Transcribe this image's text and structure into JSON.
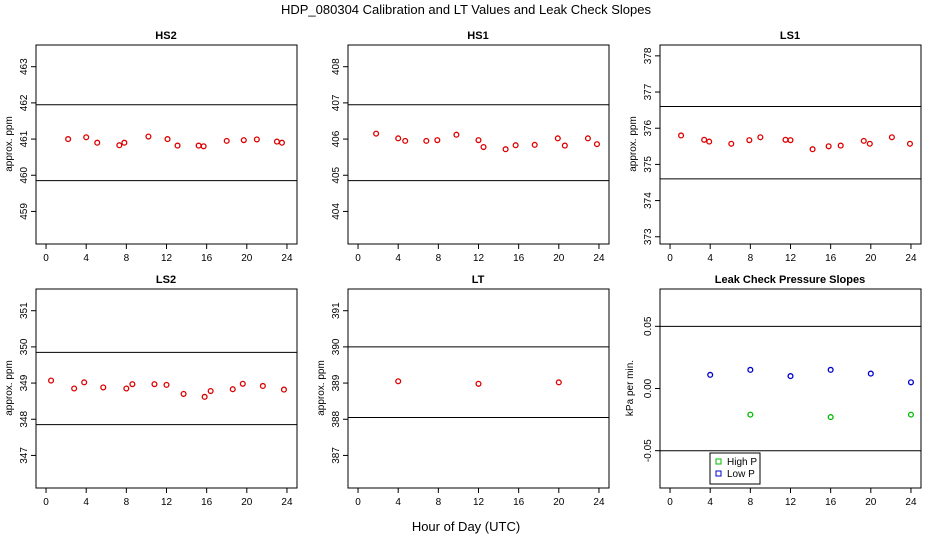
{
  "figure": {
    "title": "HDP_080304  Calibration and LT Values and Leak Check Slopes",
    "xlabel": "Hour of Day (UTC)"
  },
  "colors": {
    "cal_points": "#dd0000",
    "high_p": "#00bb00",
    "low_p": "#0000cc",
    "axis": "#000000"
  },
  "chart_data": [
    {
      "type": "scatter",
      "title": "HS2",
      "ylabel": "approx. ppm",
      "xlim": [
        -1,
        25
      ],
      "ylim": [
        458.1,
        463.6
      ],
      "xticks": [
        "0",
        "4",
        "8",
        "12",
        "16",
        "20",
        "24"
      ],
      "yticks": [
        "459",
        "460",
        "461",
        "462",
        "463"
      ],
      "ref_lines": [
        461.95,
        459.85
      ],
      "series": [
        {
          "name": "cal",
          "x": [
            2.2,
            4,
            5.1,
            7.3,
            7.8,
            10.2,
            12.1,
            13.1,
            15.2,
            15.7,
            18,
            19.7,
            21,
            23,
            23.5
          ],
          "y": [
            461,
            461.05,
            460.9,
            460.83,
            460.9,
            461.07,
            461,
            460.82,
            460.82,
            460.8,
            460.95,
            460.97,
            460.99,
            460.93,
            460.9
          ]
        }
      ]
    },
    {
      "type": "scatter",
      "title": "HS1",
      "ylabel": "",
      "xlim": [
        -1,
        25
      ],
      "ylim": [
        403.1,
        408.6
      ],
      "xticks": [
        "0",
        "4",
        "8",
        "12",
        "16",
        "20",
        "24"
      ],
      "yticks": [
        "404",
        "405",
        "406",
        "407",
        "408"
      ],
      "ref_lines": [
        406.95,
        404.85
      ],
      "series": [
        {
          "name": "cal",
          "x": [
            1.8,
            4,
            4.7,
            6.8,
            7.9,
            9.8,
            12,
            12.5,
            14.7,
            15.7,
            17.6,
            19.9,
            20.6,
            22.9,
            23.8
          ],
          "y": [
            406.15,
            406.02,
            405.95,
            405.95,
            405.97,
            406.12,
            405.97,
            405.78,
            405.72,
            405.83,
            405.84,
            406.02,
            405.82,
            406.02,
            405.86
          ]
        }
      ]
    },
    {
      "type": "scatter",
      "title": "LS1",
      "ylabel": "approx. ppm",
      "xlim": [
        -1,
        25
      ],
      "ylim": [
        372.8,
        378.3
      ],
      "xticks": [
        "0",
        "4",
        "8",
        "12",
        "16",
        "20",
        "24"
      ],
      "yticks": [
        "373",
        "374",
        "375",
        "376",
        "377",
        "378"
      ],
      "ref_lines": [
        376.6,
        374.6
      ],
      "series": [
        {
          "name": "cal",
          "x": [
            1.1,
            3.4,
            3.9,
            6.1,
            7.9,
            9,
            11.5,
            12,
            14.2,
            15.8,
            17,
            19.3,
            19.9,
            22.1,
            23.9
          ],
          "y": [
            375.8,
            375.68,
            375.63,
            375.57,
            375.67,
            375.75,
            375.68,
            375.67,
            375.42,
            375.5,
            375.52,
            375.65,
            375.57,
            375.75,
            375.57
          ]
        }
      ]
    },
    {
      "type": "scatter",
      "title": "LS2",
      "ylabel": "approx. ppm",
      "xlim": [
        -1,
        25
      ],
      "ylim": [
        346.1,
        351.6
      ],
      "xticks": [
        "0",
        "4",
        "8",
        "12",
        "16",
        "20",
        "24"
      ],
      "yticks": [
        "347",
        "348",
        "349",
        "350",
        "351"
      ],
      "ref_lines": [
        349.85,
        347.85
      ],
      "series": [
        {
          "name": "cal",
          "x": [
            0.5,
            2.8,
            3.8,
            5.7,
            8,
            8.6,
            10.8,
            12,
            13.7,
            15.8,
            16.4,
            18.6,
            19.6,
            21.6,
            23.7
          ],
          "y": [
            349.07,
            348.85,
            349.02,
            348.88,
            348.85,
            348.97,
            348.97,
            348.95,
            348.7,
            348.62,
            348.78,
            348.83,
            348.98,
            348.92,
            348.82
          ]
        }
      ]
    },
    {
      "type": "scatter",
      "title": "LT",
      "ylabel": "approx. ppm",
      "xlim": [
        -1,
        25
      ],
      "ylim": [
        386.1,
        391.6
      ],
      "xticks": [
        "0",
        "4",
        "8",
        "12",
        "16",
        "20",
        "24"
      ],
      "yticks": [
        "387",
        "388",
        "389",
        "390",
        "391"
      ],
      "ref_lines": [
        390.0,
        388.05
      ],
      "series": [
        {
          "name": "cal",
          "x": [
            4,
            12,
            20
          ],
          "y": [
            389.05,
            388.98,
            389.02
          ]
        }
      ]
    },
    {
      "type": "scatter",
      "title": "Leak Check Pressure Slopes",
      "ylabel": "kPa per min.",
      "xlim": [
        -1,
        25
      ],
      "ylim": [
        -0.08,
        0.08
      ],
      "xticks": [
        "0",
        "4",
        "8",
        "12",
        "16",
        "20",
        "24"
      ],
      "yticks": [
        "-0.05",
        "0.00",
        "0.05"
      ],
      "ref_lines": [
        0.05,
        -0.05
      ],
      "legend": {
        "position": "bottom-left"
      },
      "series": [
        {
          "name": "High P",
          "x": [
            8,
            16,
            24
          ],
          "y": [
            -0.021,
            -0.023,
            -0.021
          ]
        },
        {
          "name": "Low P",
          "x": [
            4,
            8,
            12,
            16,
            20,
            24
          ],
          "y": [
            0.011,
            0.015,
            0.01,
            0.015,
            0.012,
            0.005
          ]
        }
      ]
    }
  ]
}
